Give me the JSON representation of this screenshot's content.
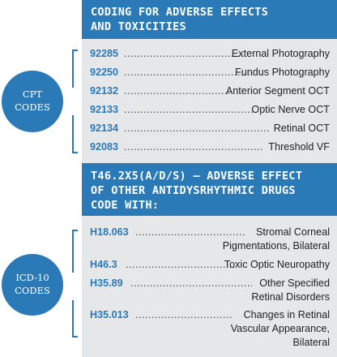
{
  "section1": {
    "header_line1": "CODING FOR ADVERSE EFFECTS",
    "header_line2": "AND TOXICITIES",
    "badge_line1": "CPT",
    "badge_line2": "CODES",
    "rows": [
      {
        "code": "92285",
        "desc": "External Photography"
      },
      {
        "code": "92250",
        "desc": "Fundus Photography"
      },
      {
        "code": "92132",
        "desc": "Anterior Segment OCT"
      },
      {
        "code": "92133",
        "desc": "Optic Nerve OCT"
      },
      {
        "code": "92134",
        "desc": "Retinal OCT"
      },
      {
        "code": "92083",
        "desc": "Threshold VF"
      }
    ]
  },
  "section2": {
    "header_line1": "T46.2X5(A/D/S) – ADVERSE EFFECT",
    "header_line2": "OF OTHER ANTIDYSRHYTHMIC DRUGS",
    "header_line3": "CODE WITH:",
    "badge_line1": "ICD-10",
    "badge_line2": "CODES",
    "rows": [
      {
        "code": "H18.063",
        "desc": "Stromal Corneal",
        "desc2": "Pigmentations, Bilateral",
        "desc3": ""
      },
      {
        "code": "H46.3",
        "desc": "Toxic Optic Neuropathy",
        "desc2": "",
        "desc3": ""
      },
      {
        "code": "H35.89",
        "desc": "Other Specified",
        "desc2": "Retinal Disorders",
        "desc3": ""
      },
      {
        "code": "H35.013",
        "desc": "Changes in Retinal",
        "desc2": "Vascular Appearance,",
        "desc3": "Bilateral"
      }
    ]
  },
  "colors": {
    "accent": "#2a7ab8",
    "panel": "#e6e7e8"
  }
}
